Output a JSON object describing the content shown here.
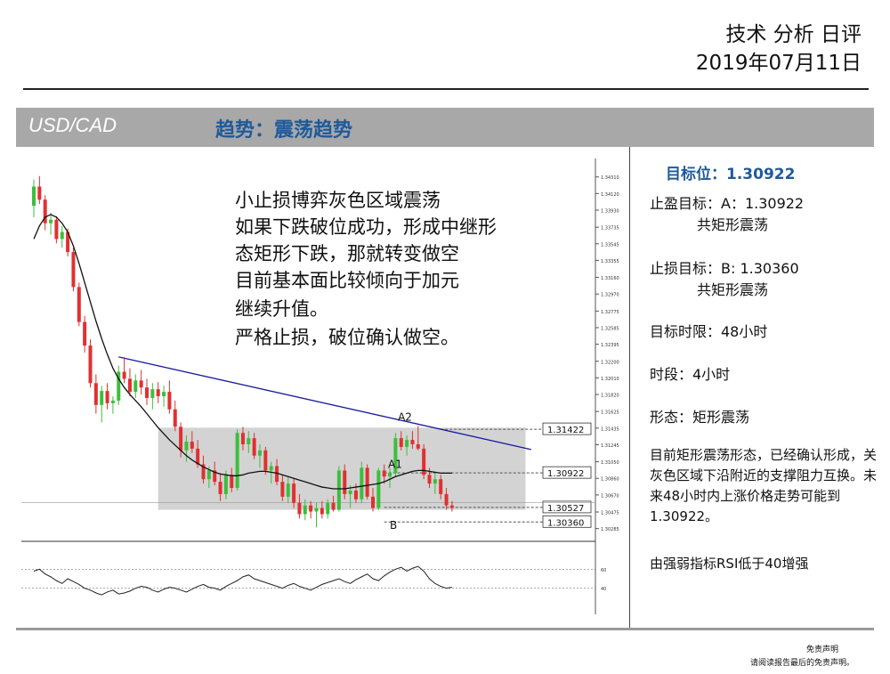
{
  "header": {
    "line1": "技术 分析 日评",
    "date": "2019年07月11日"
  },
  "band": {
    "pair": "USD/CAD",
    "trend": "趋势：震荡趋势"
  },
  "notes": [
    "小止损博弈灰色区域震荡",
    "如果下跌破位成功，形成中继形",
    "态矩形下跌，那就转变做空",
    "目前基本面比较倾向于加元",
    "继续升值。",
    "严格止损，破位确认做空。"
  ],
  "right_panel": {
    "target": "目标位：1.30922",
    "take_profit": "止盈目标：A：1.30922",
    "take_profit_sub": "共矩形震荡",
    "stop_loss": "止损目标：B: 1.30360",
    "stop_loss_sub": "共矩形震荡",
    "time_limit": "目标时限：48小时",
    "period": "时段：4小时",
    "pattern": "形态：矩形震荡",
    "analysis": "目前矩形震荡形态，已经确认形成，关灰色区域下沿附近的支撑阻力互换。未来48小时内上涨价格走势可能到1.30922。",
    "rsi_note": "由强弱指标RSI低于40增强"
  },
  "footer": {
    "line1": "免责声明",
    "line2": "请阅读报告最后的免责声明。"
  },
  "colors": {
    "bull": "#3bbf3b",
    "bear": "#e03030",
    "ma": "#111111",
    "trendline": "#1a1aa0",
    "zone": "#d3d3d3",
    "accent": "#1f5a9a"
  },
  "chart_data": {
    "type": "candlestick",
    "timeframe": "4小时",
    "y_ticks": [
      "1.34310",
      "1.34120",
      "1.33930",
      "1.33735",
      "1.33545",
      "1.33355",
      "1.33160",
      "1.32970",
      "1.32775",
      "1.32585",
      "1.32395",
      "1.32200",
      "1.32010",
      "1.31820",
      "1.31625",
      "1.31435",
      "1.31245",
      "1.31050",
      "1.30860",
      "1.30670",
      "1.30475",
      "1.30285"
    ],
    "ylim": [
      1.302,
      1.3445
    ],
    "level_labels": [
      "1.31422",
      "1.30922",
      "1.30527",
      "1.30360"
    ],
    "levels": [
      1.31422,
      1.30922,
      1.30527,
      1.3036
    ],
    "annotations": [
      "A2",
      "A1",
      "B"
    ],
    "zone": {
      "low": 1.305,
      "high": 1.3144,
      "from_bar": 22,
      "to_bar": 87
    },
    "trendline": {
      "from": [
        15,
        1.3225
      ],
      "to": [
        88,
        1.3119
      ]
    },
    "ohlc": [
      [
        1.3398,
        1.3428,
        1.3385,
        1.342
      ],
      [
        1.342,
        1.3432,
        1.34,
        1.3405
      ],
      [
        1.3405,
        1.341,
        1.337,
        1.3378
      ],
      [
        1.3378,
        1.339,
        1.3365,
        1.3382
      ],
      [
        1.3382,
        1.3386,
        1.3355,
        1.336
      ],
      [
        1.336,
        1.3375,
        1.335,
        1.3368
      ],
      [
        1.3368,
        1.3372,
        1.334,
        1.3345
      ],
      [
        1.3345,
        1.335,
        1.33,
        1.3305
      ],
      [
        1.3305,
        1.331,
        1.326,
        1.3265
      ],
      [
        1.3265,
        1.3272,
        1.323,
        1.3238
      ],
      [
        1.3238,
        1.3245,
        1.319,
        1.3195
      ],
      [
        1.3195,
        1.3205,
        1.316,
        1.317
      ],
      [
        1.317,
        1.3192,
        1.315,
        1.3186
      ],
      [
        1.3186,
        1.3195,
        1.3165,
        1.3172
      ],
      [
        1.3172,
        1.318,
        1.316,
        1.3175
      ],
      [
        1.3175,
        1.3215,
        1.317,
        1.3208
      ],
      [
        1.3208,
        1.3225,
        1.3195,
        1.32
      ],
      [
        1.32,
        1.3212,
        1.318,
        1.3185
      ],
      [
        1.3185,
        1.3205,
        1.3178,
        1.3198
      ],
      [
        1.3198,
        1.321,
        1.3182,
        1.319
      ],
      [
        1.319,
        1.32,
        1.317,
        1.3178
      ],
      [
        1.3178,
        1.3195,
        1.3165,
        1.3188
      ],
      [
        1.3188,
        1.3196,
        1.3172,
        1.318
      ],
      [
        1.318,
        1.3192,
        1.3168,
        1.3185
      ],
      [
        1.3185,
        1.3198,
        1.316,
        1.3165
      ],
      [
        1.3165,
        1.3175,
        1.314,
        1.3145
      ],
      [
        1.3145,
        1.315,
        1.311,
        1.3118
      ],
      [
        1.3118,
        1.3135,
        1.3105,
        1.3128
      ],
      [
        1.3128,
        1.314,
        1.3115,
        1.312
      ],
      [
        1.312,
        1.313,
        1.3098,
        1.3102
      ],
      [
        1.3102,
        1.3112,
        1.308,
        1.3085
      ],
      [
        1.3085,
        1.31,
        1.3075,
        1.3095
      ],
      [
        1.3095,
        1.3105,
        1.3078,
        1.3082
      ],
      [
        1.3082,
        1.3092,
        1.306,
        1.3068
      ],
      [
        1.3068,
        1.3095,
        1.3062,
        1.309
      ],
      [
        1.309,
        1.3098,
        1.307,
        1.3075
      ],
      [
        1.3075,
        1.3142,
        1.3072,
        1.3138
      ],
      [
        1.3138,
        1.3145,
        1.3118,
        1.3125
      ],
      [
        1.3125,
        1.314,
        1.3115,
        1.3132
      ],
      [
        1.3132,
        1.3138,
        1.3108,
        1.3112
      ],
      [
        1.3112,
        1.3125,
        1.3098,
        1.3118
      ],
      [
        1.3118,
        1.3122,
        1.309,
        1.3095
      ],
      [
        1.3095,
        1.3105,
        1.308,
        1.31
      ],
      [
        1.31,
        1.3108,
        1.3078,
        1.3082
      ],
      [
        1.3082,
        1.309,
        1.306,
        1.3065
      ],
      [
        1.3065,
        1.3088,
        1.3058,
        1.308
      ],
      [
        1.308,
        1.3086,
        1.3052,
        1.3058
      ],
      [
        1.3058,
        1.3068,
        1.304,
        1.3045
      ],
      [
        1.3045,
        1.3062,
        1.3038,
        1.3055
      ],
      [
        1.3055,
        1.306,
        1.304,
        1.3048
      ],
      [
        1.3048,
        1.3058,
        1.303,
        1.3052
      ],
      [
        1.3052,
        1.306,
        1.304,
        1.3045
      ],
      [
        1.3045,
        1.3062,
        1.304,
        1.3058
      ],
      [
        1.3058,
        1.3066,
        1.3048,
        1.305
      ],
      [
        1.305,
        1.31,
        1.3048,
        1.3095
      ],
      [
        1.3095,
        1.3102,
        1.3062,
        1.3068
      ],
      [
        1.3068,
        1.3078,
        1.3052,
        1.3072
      ],
      [
        1.3072,
        1.308,
        1.3058,
        1.3062
      ],
      [
        1.3062,
        1.3105,
        1.3058,
        1.3098
      ],
      [
        1.3098,
        1.3102,
        1.3062,
        1.3065
      ],
      [
        1.3065,
        1.3075,
        1.3048,
        1.3052
      ],
      [
        1.3052,
        1.3098,
        1.305,
        1.3095
      ],
      [
        1.3095,
        1.3102,
        1.308,
        1.3088
      ],
      [
        1.3088,
        1.3098,
        1.3075,
        1.3092
      ],
      [
        1.3092,
        1.3138,
        1.3088,
        1.3132
      ],
      [
        1.3132,
        1.314,
        1.3118,
        1.3122
      ],
      [
        1.3122,
        1.3135,
        1.3112,
        1.313
      ],
      [
        1.313,
        1.314,
        1.312,
        1.3125
      ],
      [
        1.3125,
        1.3146,
        1.3118,
        1.312
      ],
      [
        1.312,
        1.3125,
        1.3085,
        1.309
      ],
      [
        1.309,
        1.3098,
        1.3075,
        1.308
      ],
      [
        1.308,
        1.3092,
        1.3068,
        1.3085
      ],
      [
        1.3085,
        1.309,
        1.3062,
        1.3068
      ],
      [
        1.3068,
        1.3075,
        1.305,
        1.3055
      ],
      [
        1.3055,
        1.306,
        1.3048,
        1.3052
      ]
    ],
    "ma": [
      1.336,
      1.3375,
      1.3385,
      1.3388,
      1.3385,
      1.3378,
      1.3368,
      1.3352,
      1.3332,
      1.331,
      1.3288,
      1.3266,
      1.3246,
      1.3228,
      1.3212,
      1.32,
      1.319,
      1.3182,
      1.3175,
      1.3168,
      1.316,
      1.3152,
      1.3144,
      1.3137,
      1.313,
      1.3124,
      1.3118,
      1.3112,
      1.3107,
      1.3103,
      1.3099,
      1.3096,
      1.3093,
      1.3091,
      1.309,
      1.3089,
      1.3089,
      1.309,
      1.3092,
      1.3093,
      1.3094,
      1.3094,
      1.3093,
      1.3092,
      1.309,
      1.3088,
      1.3086,
      1.3084,
      1.3082,
      1.308,
      1.3078,
      1.3076,
      1.3075,
      1.3074,
      1.3074,
      1.3074,
      1.3075,
      1.3076,
      1.3077,
      1.3078,
      1.3079,
      1.308,
      1.3082,
      1.3085,
      1.3088,
      1.309,
      1.3092,
      1.3094,
      1.3095,
      1.3095,
      1.3094,
      1.3093,
      1.3092,
      1.3092,
      1.3092
    ],
    "rsi": {
      "levels": [
        60,
        40
      ],
      "values": [
        58,
        60,
        55,
        52,
        48,
        45,
        50,
        47,
        44,
        40,
        38,
        35,
        33,
        36,
        38,
        34,
        35,
        37,
        40,
        42,
        41,
        38,
        36,
        39,
        41,
        40,
        38,
        36,
        39,
        42,
        44,
        41,
        40,
        38,
        42,
        45,
        48,
        52,
        54,
        50,
        48,
        46,
        44,
        42,
        40,
        43,
        45,
        42,
        40,
        38,
        41,
        44,
        46,
        48,
        50,
        47,
        45,
        49,
        52,
        55,
        50,
        48,
        53,
        57,
        60,
        62,
        58,
        61,
        63,
        58,
        50,
        45,
        42,
        40,
        41
      ]
    }
  }
}
